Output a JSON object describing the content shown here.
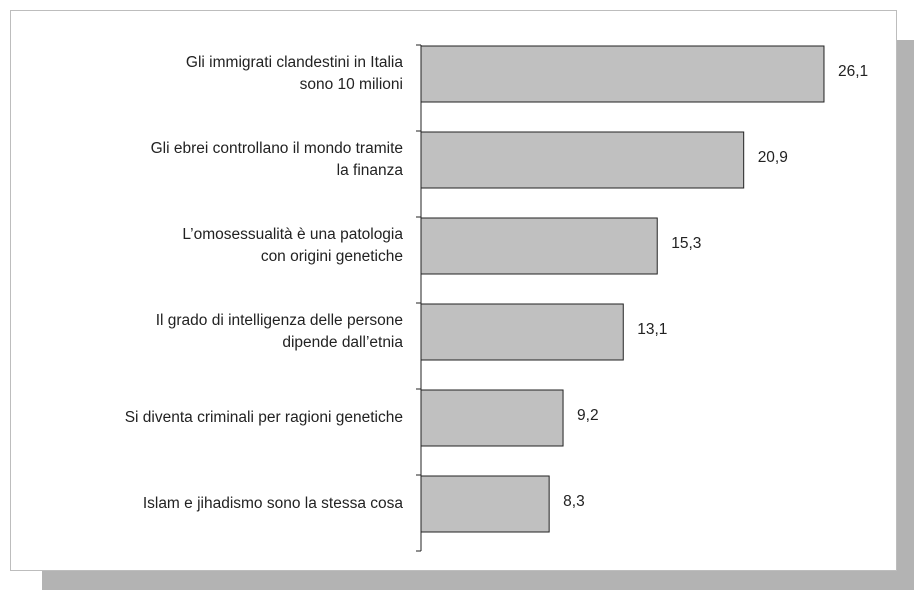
{
  "chart_data": {
    "type": "bar",
    "orientation": "horizontal",
    "categories": [
      [
        "Gli immigrati clandestini in Italia",
        "sono 10 milioni"
      ],
      [
        "Gli ebrei controllano il mondo tramite",
        "la finanza"
      ],
      [
        "L’omosessualità è una patologia",
        "con origini genetiche"
      ],
      [
        "Il grado di intelligenza delle persone",
        "dipende dall’etnia"
      ],
      [
        "Si diventa criminali per ragioni genetiche"
      ],
      [
        "Islam e jihadismo sono la stessa cosa"
      ]
    ],
    "values": [
      26.1,
      20.9,
      15.3,
      13.1,
      9.2,
      8.3
    ],
    "value_labels": [
      "26,1",
      "20,9",
      "15,3",
      "13,1",
      "9,2",
      "8,3"
    ],
    "color": "#c0c0c0"
  }
}
